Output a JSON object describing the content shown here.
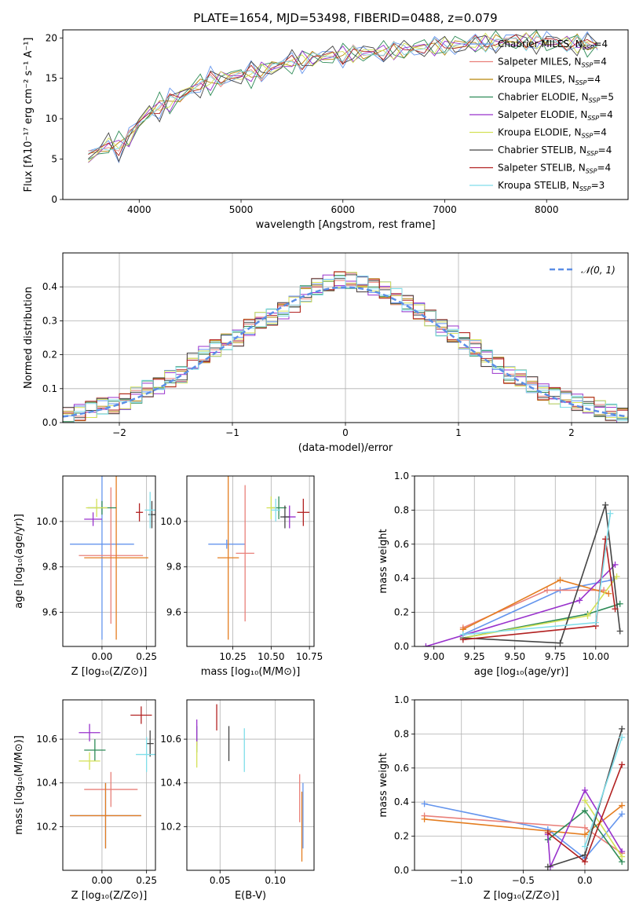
{
  "title": "PLATE=1654, MJD=53498, FIBERID=0488, z=0.079",
  "legend": [
    {
      "label": "Chabrier MILES, N",
      "sub": "SSP",
      "suffix": "=4",
      "color": "#6495ed"
    },
    {
      "label": "Salpeter MILES, N",
      "sub": "SSP",
      "suffix": "=4",
      "color": "#e9807a"
    },
    {
      "label": "Kroupa MILES, N",
      "sub": "SSP",
      "suffix": "=4",
      "color": "#b8860b"
    },
    {
      "label": "Chabrier ELODIE, N",
      "sub": "SSP",
      "suffix": "=5",
      "color": "#2e8b57"
    },
    {
      "label": "Salpeter ELODIE, N",
      "sub": "SSP",
      "suffix": "=4",
      "color": "#9932cc"
    },
    {
      "label": "Kroupa ELODIE, N",
      "sub": "SSP",
      "suffix": "=4",
      "color": "#d4e157"
    },
    {
      "label": "Chabrier STELIB, N",
      "sub": "SSP",
      "suffix": "=4",
      "color": "#444444"
    },
    {
      "label": "Salpeter STELIB, N",
      "sub": "SSP",
      "suffix": "=4",
      "color": "#b22222"
    },
    {
      "label": "Kroupa STELIB, N",
      "sub": "SSP",
      "suffix": "=3",
      "color": "#80deea"
    }
  ],
  "chart_data": [
    {
      "type": "line",
      "xlabel": "wavelength [Angstrom, rest frame]",
      "ylabel": "Flux [fλ10⁻¹⁷ erg cm⁻² s⁻¹ A⁻¹]",
      "xlim": [
        3250,
        8800
      ],
      "ylim": [
        0,
        21
      ],
      "xticks": [
        "4000",
        "5000",
        "6000",
        "7000",
        "8000"
      ],
      "yticks": [
        "0",
        "5",
        "10",
        "15",
        "20"
      ],
      "spectrum": {
        "x": [
          3500,
          3600,
          3700,
          3800,
          3900,
          4000,
          4100,
          4200,
          4300,
          4400,
          4500,
          4600,
          4700,
          4800,
          4900,
          5000,
          5100,
          5200,
          5300,
          5400,
          5500,
          5600,
          5700,
          5800,
          5900,
          6000,
          6100,
          6200,
          6300,
          6400,
          6500,
          6600,
          6700,
          6800,
          6900,
          7000,
          7100,
          7200,
          7300,
          7400,
          7500,
          7600,
          7700,
          7800,
          7900,
          8000,
          8100,
          8200,
          8300,
          8400,
          8500
        ],
        "y": [
          5.2,
          6.0,
          6.8,
          6.5,
          7.5,
          9.5,
          10.8,
          11.5,
          12.0,
          12.8,
          13.6,
          14.2,
          14.6,
          15.0,
          15.2,
          15.4,
          15.5,
          15.9,
          16.3,
          16.7,
          17.0,
          17.2,
          17.4,
          17.6,
          17.8,
          17.9,
          18.0,
          18.1,
          18.2,
          18.3,
          18.4,
          18.5,
          18.7,
          18.8,
          18.9,
          19.0,
          19.1,
          19.2,
          19.3,
          19.4,
          19.5,
          19.6,
          19.6,
          19.6,
          19.6,
          19.5,
          19.4,
          19.3,
          19.3,
          19.2,
          19.1
        ]
      }
    },
    {
      "type": "line",
      "xlabel": "(data-model)/error",
      "ylabel": "Normed distribution",
      "xlim": [
        -2.5,
        2.5
      ],
      "ylim": [
        0,
        0.5
      ],
      "xticks": [
        "−2",
        "−1",
        "0",
        "1",
        "2"
      ],
      "yticks": [
        "0.0",
        "0.1",
        "0.2",
        "0.3",
        "0.4"
      ],
      "gaussian_label": "𝒩(0, 1)",
      "histogram_bins": [
        -2.5,
        -2.4,
        -2.3,
        -2.2,
        -2.1,
        -2.0,
        -1.9,
        -1.8,
        -1.7,
        -1.6,
        -1.5,
        -1.4,
        -1.3,
        -1.2,
        -1.1,
        -1.0,
        -0.9,
        -0.8,
        -0.7,
        -0.6,
        -0.5,
        -0.4,
        -0.3,
        -0.2,
        -0.1,
        0.0,
        0.1,
        0.2,
        0.3,
        0.4,
        0.5,
        0.6,
        0.7,
        0.8,
        0.9,
        1.0,
        1.1,
        1.2,
        1.3,
        1.4,
        1.5,
        1.6,
        1.7,
        1.8,
        1.9,
        2.0,
        2.1,
        2.2,
        2.3,
        2.4
      ],
      "histogram_values": [
        0.02,
        0.03,
        0.04,
        0.05,
        0.05,
        0.06,
        0.08,
        0.1,
        0.11,
        0.13,
        0.14,
        0.18,
        0.2,
        0.22,
        0.24,
        0.25,
        0.28,
        0.3,
        0.31,
        0.33,
        0.35,
        0.38,
        0.4,
        0.41,
        0.42,
        0.42,
        0.41,
        0.4,
        0.39,
        0.37,
        0.35,
        0.33,
        0.31,
        0.28,
        0.26,
        0.24,
        0.22,
        0.19,
        0.17,
        0.14,
        0.13,
        0.11,
        0.09,
        0.08,
        0.07,
        0.06,
        0.05,
        0.04,
        0.03,
        0.02
      ]
    },
    {
      "type": "scatter",
      "xlabel": "Z [log₁₀(Z/Z⊙)]",
      "ylabel": "age  [log₁₀(age/yr)]",
      "xlim": [
        -0.22,
        0.3
      ],
      "ylim": [
        9.45,
        10.2
      ],
      "xticks": [
        "0.00",
        "0.25"
      ],
      "yticks": [
        "9.6",
        "9.8",
        "10.0"
      ],
      "points": [
        {
          "x": 0.0,
          "y": 9.9,
          "xerr": 0.18,
          "yerr": 0.42,
          "color": "#6495ed"
        },
        {
          "x": 0.05,
          "y": 9.85,
          "xerr": 0.18,
          "yerr": 0.3,
          "color": "#e9807a"
        },
        {
          "x": 0.08,
          "y": 9.84,
          "xerr": 0.18,
          "yerr": 0.36,
          "color": "#e47d20"
        },
        {
          "x": 0.0,
          "y": 10.06,
          "xerr": 0.08,
          "yerr": 0.03,
          "color": "#2e8b57"
        },
        {
          "x": -0.05,
          "y": 10.01,
          "xerr": 0.05,
          "yerr": 0.03,
          "color": "#9932cc"
        },
        {
          "x": -0.03,
          "y": 10.06,
          "xerr": 0.06,
          "yerr": 0.04,
          "color": "#d4e157"
        },
        {
          "x": 0.28,
          "y": 10.03,
          "xerr": 0.02,
          "yerr": 0.06,
          "color": "#444444"
        },
        {
          "x": 0.21,
          "y": 10.04,
          "xerr": 0.02,
          "yerr": 0.04,
          "color": "#b22222"
        },
        {
          "x": 0.27,
          "y": 10.05,
          "xerr": 0.03,
          "yerr": 0.08,
          "color": "#80deea"
        }
      ]
    },
    {
      "type": "scatter",
      "xlabel": "mass [log₁₀(M/M⊙)]",
      "ylabel": "",
      "xlim": [
        9.95,
        10.78
      ],
      "ylim": [
        9.45,
        10.2
      ],
      "xticks": [
        "10.25",
        "10.50",
        "10.75"
      ],
      "yticks": [
        "9.6",
        "9.8",
        "10.0"
      ],
      "points": [
        {
          "x": 10.21,
          "y": 9.9,
          "xerr": 0.12,
          "yerr": 0.02,
          "color": "#6495ed"
        },
        {
          "x": 10.33,
          "y": 9.86,
          "xerr": 0.06,
          "yerr": 0.3,
          "color": "#e9807a"
        },
        {
          "x": 10.22,
          "y": 9.84,
          "xerr": 0.07,
          "yerr": 0.36,
          "color": "#e47d20"
        },
        {
          "x": 10.55,
          "y": 10.06,
          "xerr": 0.05,
          "yerr": 0.05,
          "color": "#2e8b57"
        },
        {
          "x": 10.62,
          "y": 10.02,
          "xerr": 0.04,
          "yerr": 0.05,
          "color": "#9932cc"
        },
        {
          "x": 10.5,
          "y": 10.06,
          "xerr": 0.03,
          "yerr": 0.05,
          "color": "#d4e157"
        },
        {
          "x": 10.59,
          "y": 10.02,
          "xerr": 0.03,
          "yerr": 0.05,
          "color": "#444444"
        },
        {
          "x": 10.71,
          "y": 10.04,
          "xerr": 0.04,
          "yerr": 0.06,
          "color": "#b22222"
        },
        {
          "x": 10.53,
          "y": 10.05,
          "xerr": 0.03,
          "yerr": 0.05,
          "color": "#80deea"
        }
      ]
    },
    {
      "type": "line",
      "xlabel": "age  [log₁₀(age/yr)]",
      "ylabel": "mass weight",
      "xlim": [
        8.88,
        10.2
      ],
      "ylim": [
        0,
        1
      ],
      "xticks": [
        "9.00",
        "9.25",
        "9.50",
        "9.75",
        "10.00"
      ],
      "yticks": [
        "0.0",
        "0.2",
        "0.4",
        "0.6",
        "0.8",
        "1.0"
      ],
      "series": [
        {
          "color": "#6495ed",
          "x": [
            9.18,
            9.78,
            10.1
          ],
          "y": [
            0.07,
            0.33,
            0.39
          ]
        },
        {
          "color": "#e9807a",
          "x": [
            9.18,
            9.7,
            10.05
          ],
          "y": [
            0.11,
            0.33,
            0.33
          ]
        },
        {
          "color": "#e47d20",
          "x": [
            9.18,
            9.78,
            10.08
          ],
          "y": [
            0.1,
            0.39,
            0.31
          ]
        },
        {
          "color": "#2e8b57",
          "x": [
            9.18,
            9.95,
            10.15
          ],
          "y": [
            0.05,
            0.19,
            0.25
          ]
        },
        {
          "color": "#9932cc",
          "x": [
            8.95,
            9.9,
            10.12
          ],
          "y": [
            0.0,
            0.27,
            0.48
          ]
        },
        {
          "color": "#d4e157",
          "x": [
            9.18,
            9.95,
            10.13
          ],
          "y": [
            0.05,
            0.18,
            0.41
          ]
        },
        {
          "color": "#444444",
          "x": [
            9.18,
            9.78,
            10.06,
            10.15
          ],
          "y": [
            0.05,
            0.02,
            0.83,
            0.09
          ]
        },
        {
          "color": "#b22222",
          "x": [
            9.18,
            10.0,
            10.06,
            10.12
          ],
          "y": [
            0.04,
            0.12,
            0.63,
            0.22
          ]
        },
        {
          "color": "#80deea",
          "x": [
            9.18,
            10.0,
            10.09
          ],
          "y": [
            0.07,
            0.14,
            0.78
          ]
        }
      ]
    },
    {
      "type": "scatter",
      "xlabel": "Z [log₁₀(Z/Z⊙)]",
      "ylabel": "mass [log₁₀(M/M⊙)]",
      "xlim": [
        -0.22,
        0.3
      ],
      "ylim": [
        10.0,
        10.78
      ],
      "xticks": [
        "0.00",
        "0.25"
      ],
      "yticks": [
        "10.2",
        "10.4",
        "10.6"
      ],
      "points": [
        {
          "x": 0.02,
          "y": 10.25,
          "xerr": 0.2,
          "yerr": 0.15,
          "color": "#6495ed"
        },
        {
          "x": 0.05,
          "y": 10.37,
          "xerr": 0.15,
          "yerr": 0.08,
          "color": "#e9807a"
        },
        {
          "x": 0.02,
          "y": 10.25,
          "xerr": 0.2,
          "yerr": 0.15,
          "color": "#e47d20"
        },
        {
          "x": -0.04,
          "y": 10.55,
          "xerr": 0.06,
          "yerr": 0.05,
          "color": "#2e8b57"
        },
        {
          "x": -0.07,
          "y": 10.63,
          "xerr": 0.06,
          "yerr": 0.04,
          "color": "#9932cc"
        },
        {
          "x": -0.07,
          "y": 10.5,
          "xerr": 0.06,
          "yerr": 0.04,
          "color": "#d4e157"
        },
        {
          "x": 0.27,
          "y": 10.58,
          "xerr": 0.02,
          "yerr": 0.06,
          "color": "#444444"
        },
        {
          "x": 0.22,
          "y": 10.71,
          "xerr": 0.06,
          "yerr": 0.04,
          "color": "#b22222"
        },
        {
          "x": 0.25,
          "y": 10.53,
          "xerr": 0.06,
          "yerr": 0.08,
          "color": "#80deea"
        }
      ]
    },
    {
      "type": "scatter",
      "xlabel": "E(B-V)",
      "ylabel": "",
      "xlim": [
        0.02,
        0.135
      ],
      "ylim": [
        10.0,
        10.78
      ],
      "xticks": [
        "0.05",
        "0.10"
      ],
      "yticks": [
        "10.2",
        "10.4",
        "10.6"
      ],
      "points": [
        {
          "x": 0.125,
          "y": 10.25,
          "xerr": 0,
          "yerr": 0.15,
          "color": "#6495ed"
        },
        {
          "x": 0.122,
          "y": 10.33,
          "xerr": 0,
          "yerr": 0.11,
          "color": "#e9807a"
        },
        {
          "x": 0.124,
          "y": 10.2,
          "xerr": 0,
          "yerr": 0.16,
          "color": "#e47d20"
        },
        {
          "x": 0.029,
          "y": 10.6,
          "xerr": 0,
          "yerr": 0.06,
          "color": "#2e8b57"
        },
        {
          "x": 0.029,
          "y": 10.63,
          "xerr": 0,
          "yerr": 0.06,
          "color": "#9932cc"
        },
        {
          "x": 0.029,
          "y": 10.53,
          "xerr": 0,
          "yerr": 0.06,
          "color": "#d4e157"
        },
        {
          "x": 0.058,
          "y": 10.58,
          "xerr": 0,
          "yerr": 0.08,
          "color": "#444444"
        },
        {
          "x": 0.047,
          "y": 10.7,
          "xerr": 0,
          "yerr": 0.06,
          "color": "#b22222"
        },
        {
          "x": 0.072,
          "y": 10.55,
          "xerr": 0,
          "yerr": 0.1,
          "color": "#80deea"
        }
      ]
    },
    {
      "type": "line",
      "xlabel": "Z [log₁₀(Z/Z⊙)]",
      "ylabel": "mass weight",
      "xlim": [
        -1.38,
        0.35
      ],
      "ylim": [
        0,
        1
      ],
      "xticks": [
        "−1.0",
        "−0.5",
        "0.0"
      ],
      "yticks": [
        "0.0",
        "0.2",
        "0.4",
        "0.6",
        "0.8",
        "1.0"
      ],
      "series": [
        {
          "color": "#6495ed",
          "x": [
            -1.3,
            -0.3,
            0.0,
            0.3
          ],
          "y": [
            0.39,
            0.24,
            0.07,
            0.33
          ]
        },
        {
          "color": "#e9807a",
          "x": [
            -1.3,
            0.0,
            0.3
          ],
          "y": [
            0.32,
            0.25,
            0.1
          ]
        },
        {
          "color": "#e47d20",
          "x": [
            -1.3,
            0.0,
            0.3
          ],
          "y": [
            0.3,
            0.21,
            0.38
          ]
        },
        {
          "color": "#2e8b57",
          "x": [
            -0.3,
            0.0,
            0.3
          ],
          "y": [
            0.18,
            0.35,
            0.05
          ]
        },
        {
          "color": "#9932cc",
          "x": [
            -0.3,
            -0.28,
            0.0,
            0.3
          ],
          "y": [
            0.21,
            0.02,
            0.47,
            0.11
          ]
        },
        {
          "color": "#d4e157",
          "x": [
            0.0,
            0.3
          ],
          "y": [
            0.41,
            0.08
          ]
        },
        {
          "color": "#444444",
          "x": [
            -0.3,
            0.0,
            0.3
          ],
          "y": [
            0.02,
            0.09,
            0.83
          ]
        },
        {
          "color": "#b22222",
          "x": [
            -0.3,
            0.0,
            0.3
          ],
          "y": [
            0.22,
            0.05,
            0.62
          ]
        },
        {
          "color": "#80deea",
          "x": [
            0.0,
            0.3
          ],
          "y": [
            0.14,
            0.78
          ]
        }
      ]
    }
  ]
}
